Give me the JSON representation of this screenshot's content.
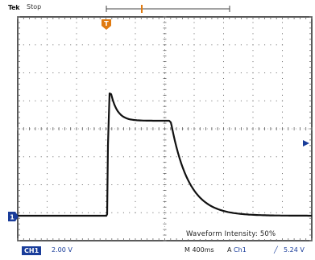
{
  "header": {
    "brand": "Tek",
    "acquisition_state": "Stop"
  },
  "markers": {
    "trigger_position": "T",
    "channel_ground": "1"
  },
  "overlay": {
    "waveform_intensity_label": "Waveform Intensity:",
    "waveform_intensity_value": "50%"
  },
  "footer": {
    "channel_badge": "CH1",
    "channel_scale": "2.00 V",
    "timebase": "M 400ms",
    "trigger_mode": "A",
    "trigger_source": "Ch1",
    "trigger_slope": "╱",
    "trigger_level": "5.24 V"
  },
  "colors": {
    "grid": "#666666",
    "trace": "#111111",
    "channel": "#1a3d9a",
    "trigger": "#e07a10"
  }
}
